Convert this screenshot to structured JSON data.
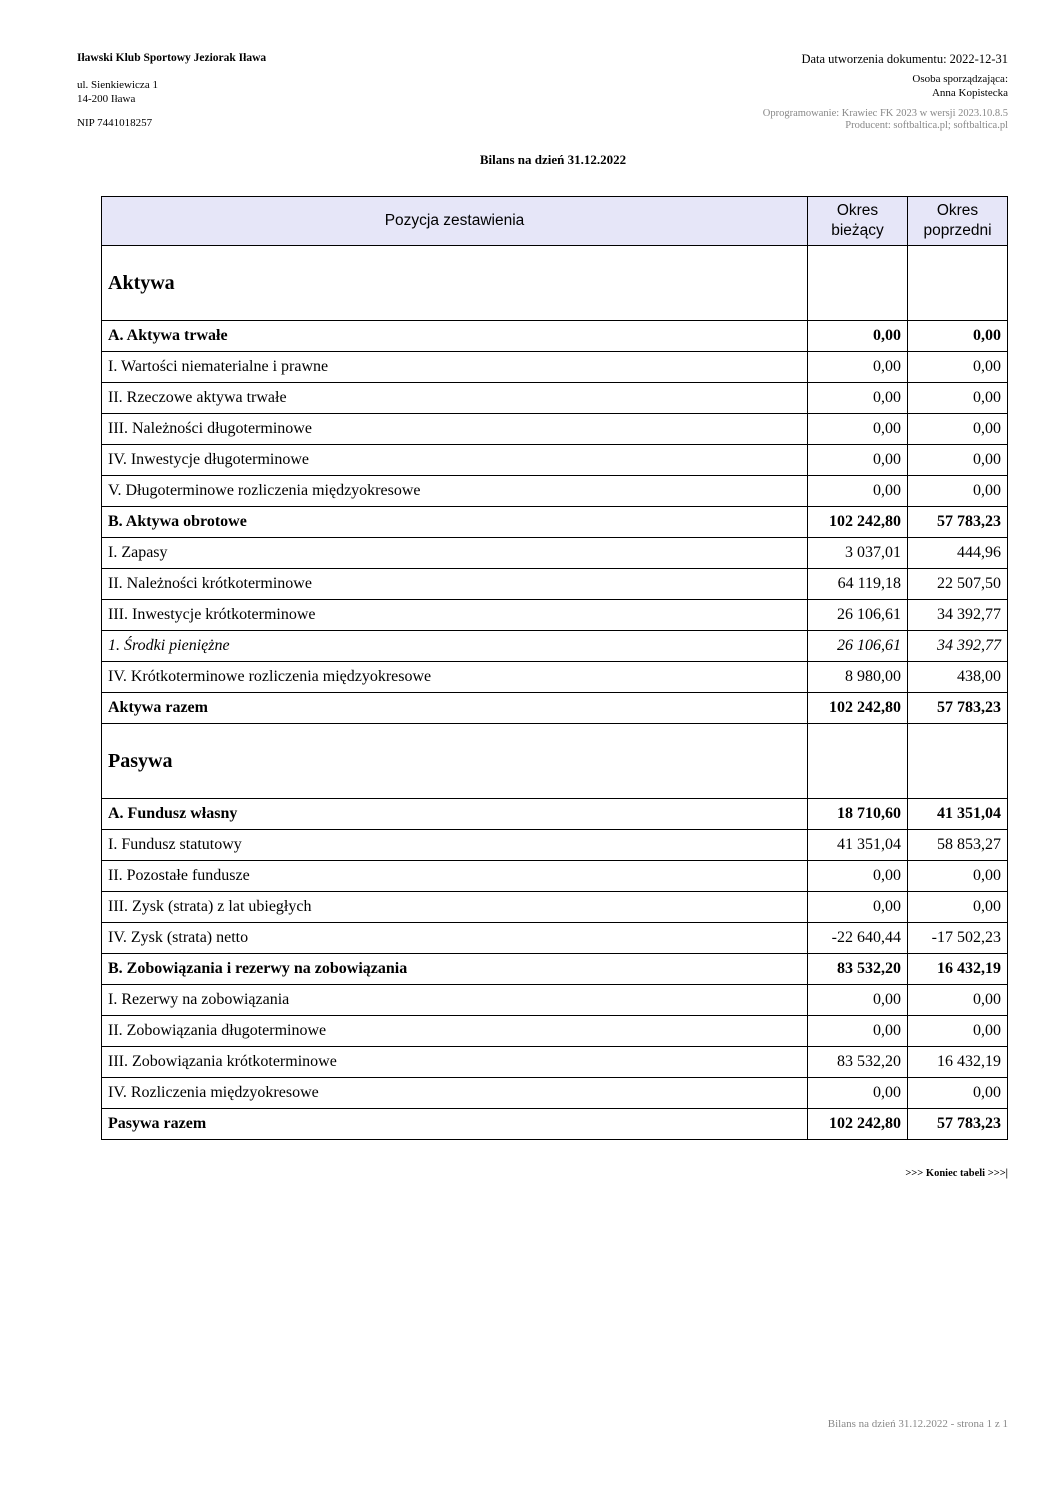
{
  "header": {
    "org_name": "Iławski Klub Sportowy Jeziorak Iława",
    "address_line1": "ul. Sienkiewicza 1",
    "address_line2": "14-200 Iława",
    "nip": "NIP 7441018257",
    "created": "Data utworzenia dokumentu: 2022-12-31",
    "preparer_label": "Osoba sporządzająca:",
    "preparer_name": "Anna Kopistecka",
    "software": "Oprogramowanie: Krawiec FK 2023 w wersji 2023.10.8.5",
    "producer": "Producent: softbaltica.pl; softbaltica.pl"
  },
  "title": "Bilans na dzień 31.12.2022",
  "table": {
    "col_position": "Pozycja zestawienia",
    "col_current": "Okres bieżący",
    "col_previous": "Okres poprzedni",
    "rows": [
      {
        "label": "Aktywa",
        "cur": "",
        "prev": "",
        "style": "sec"
      },
      {
        "label": "A. Aktywa trwałe",
        "cur": "0,00",
        "prev": "0,00",
        "style": "bold"
      },
      {
        "label": "I. Wartości niematerialne i prawne",
        "cur": "0,00",
        "prev": "0,00",
        "style": ""
      },
      {
        "label": "II. Rzeczowe aktywa trwałe",
        "cur": "0,00",
        "prev": "0,00",
        "style": ""
      },
      {
        "label": "III. Należności długoterminowe",
        "cur": "0,00",
        "prev": "0,00",
        "style": ""
      },
      {
        "label": "IV. Inwestycje długoterminowe",
        "cur": "0,00",
        "prev": "0,00",
        "style": ""
      },
      {
        "label": "V. Długoterminowe rozliczenia międzyokresowe",
        "cur": "0,00",
        "prev": "0,00",
        "style": ""
      },
      {
        "label": "B. Aktywa obrotowe",
        "cur": "102 242,80",
        "prev": "57 783,23",
        "style": "bold"
      },
      {
        "label": "I. Zapasy",
        "cur": "3 037,01",
        "prev": "444,96",
        "style": ""
      },
      {
        "label": "II. Należności krótkoterminowe",
        "cur": "64 119,18",
        "prev": "22 507,50",
        "style": ""
      },
      {
        "label": "III. Inwestycje krótkoterminowe",
        "cur": "26 106,61",
        "prev": "34 392,77",
        "style": ""
      },
      {
        "label": "1. Środki pieniężne",
        "cur": "26 106,61",
        "prev": "34 392,77",
        "style": "ital"
      },
      {
        "label": "IV. Krótkoterminowe rozliczenia międzyokresowe",
        "cur": "8 980,00",
        "prev": "438,00",
        "style": ""
      },
      {
        "label": "Aktywa razem",
        "cur": "102 242,80",
        "prev": "57 783,23",
        "style": "bold"
      },
      {
        "label": "Pasywa",
        "cur": "",
        "prev": "",
        "style": "sec"
      },
      {
        "label": "A. Fundusz własny",
        "cur": "18 710,60",
        "prev": "41 351,04",
        "style": "bold"
      },
      {
        "label": "I. Fundusz statutowy",
        "cur": "41 351,04",
        "prev": "58 853,27",
        "style": ""
      },
      {
        "label": "II. Pozostałe fundusze",
        "cur": "0,00",
        "prev": "0,00",
        "style": ""
      },
      {
        "label": "III. Zysk (strata) z lat ubiegłych",
        "cur": "0,00",
        "prev": "0,00",
        "style": ""
      },
      {
        "label": "IV. Zysk (strata) netto",
        "cur": "-22 640,44",
        "prev": "-17 502,23",
        "style": ""
      },
      {
        "label": "B. Zobowiązania i rezerwy na zobowiązania",
        "cur": "83 532,20",
        "prev": "16 432,19",
        "style": "bold"
      },
      {
        "label": "I. Rezerwy na zobowiązania",
        "cur": "0,00",
        "prev": "0,00",
        "style": ""
      },
      {
        "label": "II. Zobowiązania długoterminowe",
        "cur": "0,00",
        "prev": "0,00",
        "style": ""
      },
      {
        "label": "III. Zobowiązania krótkoterminowe",
        "cur": "83 532,20",
        "prev": "16 432,19",
        "style": ""
      },
      {
        "label": "IV. Rozliczenia międzyokresowe",
        "cur": "0,00",
        "prev": "0,00",
        "style": ""
      },
      {
        "label": "Pasywa razem",
        "cur": "102 242,80",
        "prev": "57 783,23",
        "style": "bold"
      }
    ]
  },
  "end_marker": ">>> Koniec tabeli >>>|",
  "footer": "Bilans na dzień 31.12.2022 - strona 1 z 1"
}
